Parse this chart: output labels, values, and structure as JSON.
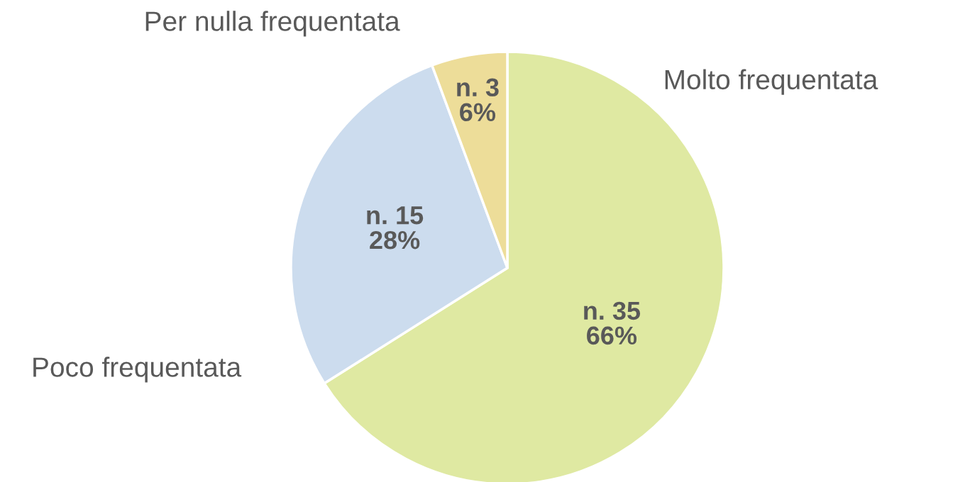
{
  "chart_data": {
    "type": "pie",
    "categories": [
      "Molto frequentata",
      "Poco frequentata",
      "Per nulla frequentata"
    ],
    "values": [
      35,
      15,
      3
    ],
    "colors": [
      "#dfe9a2",
      "#ccdcee",
      "#eddd99"
    ],
    "value_labels": [
      "n. 35\n66%",
      "n. 15\n28%",
      "n. 3\n6%"
    ]
  }
}
